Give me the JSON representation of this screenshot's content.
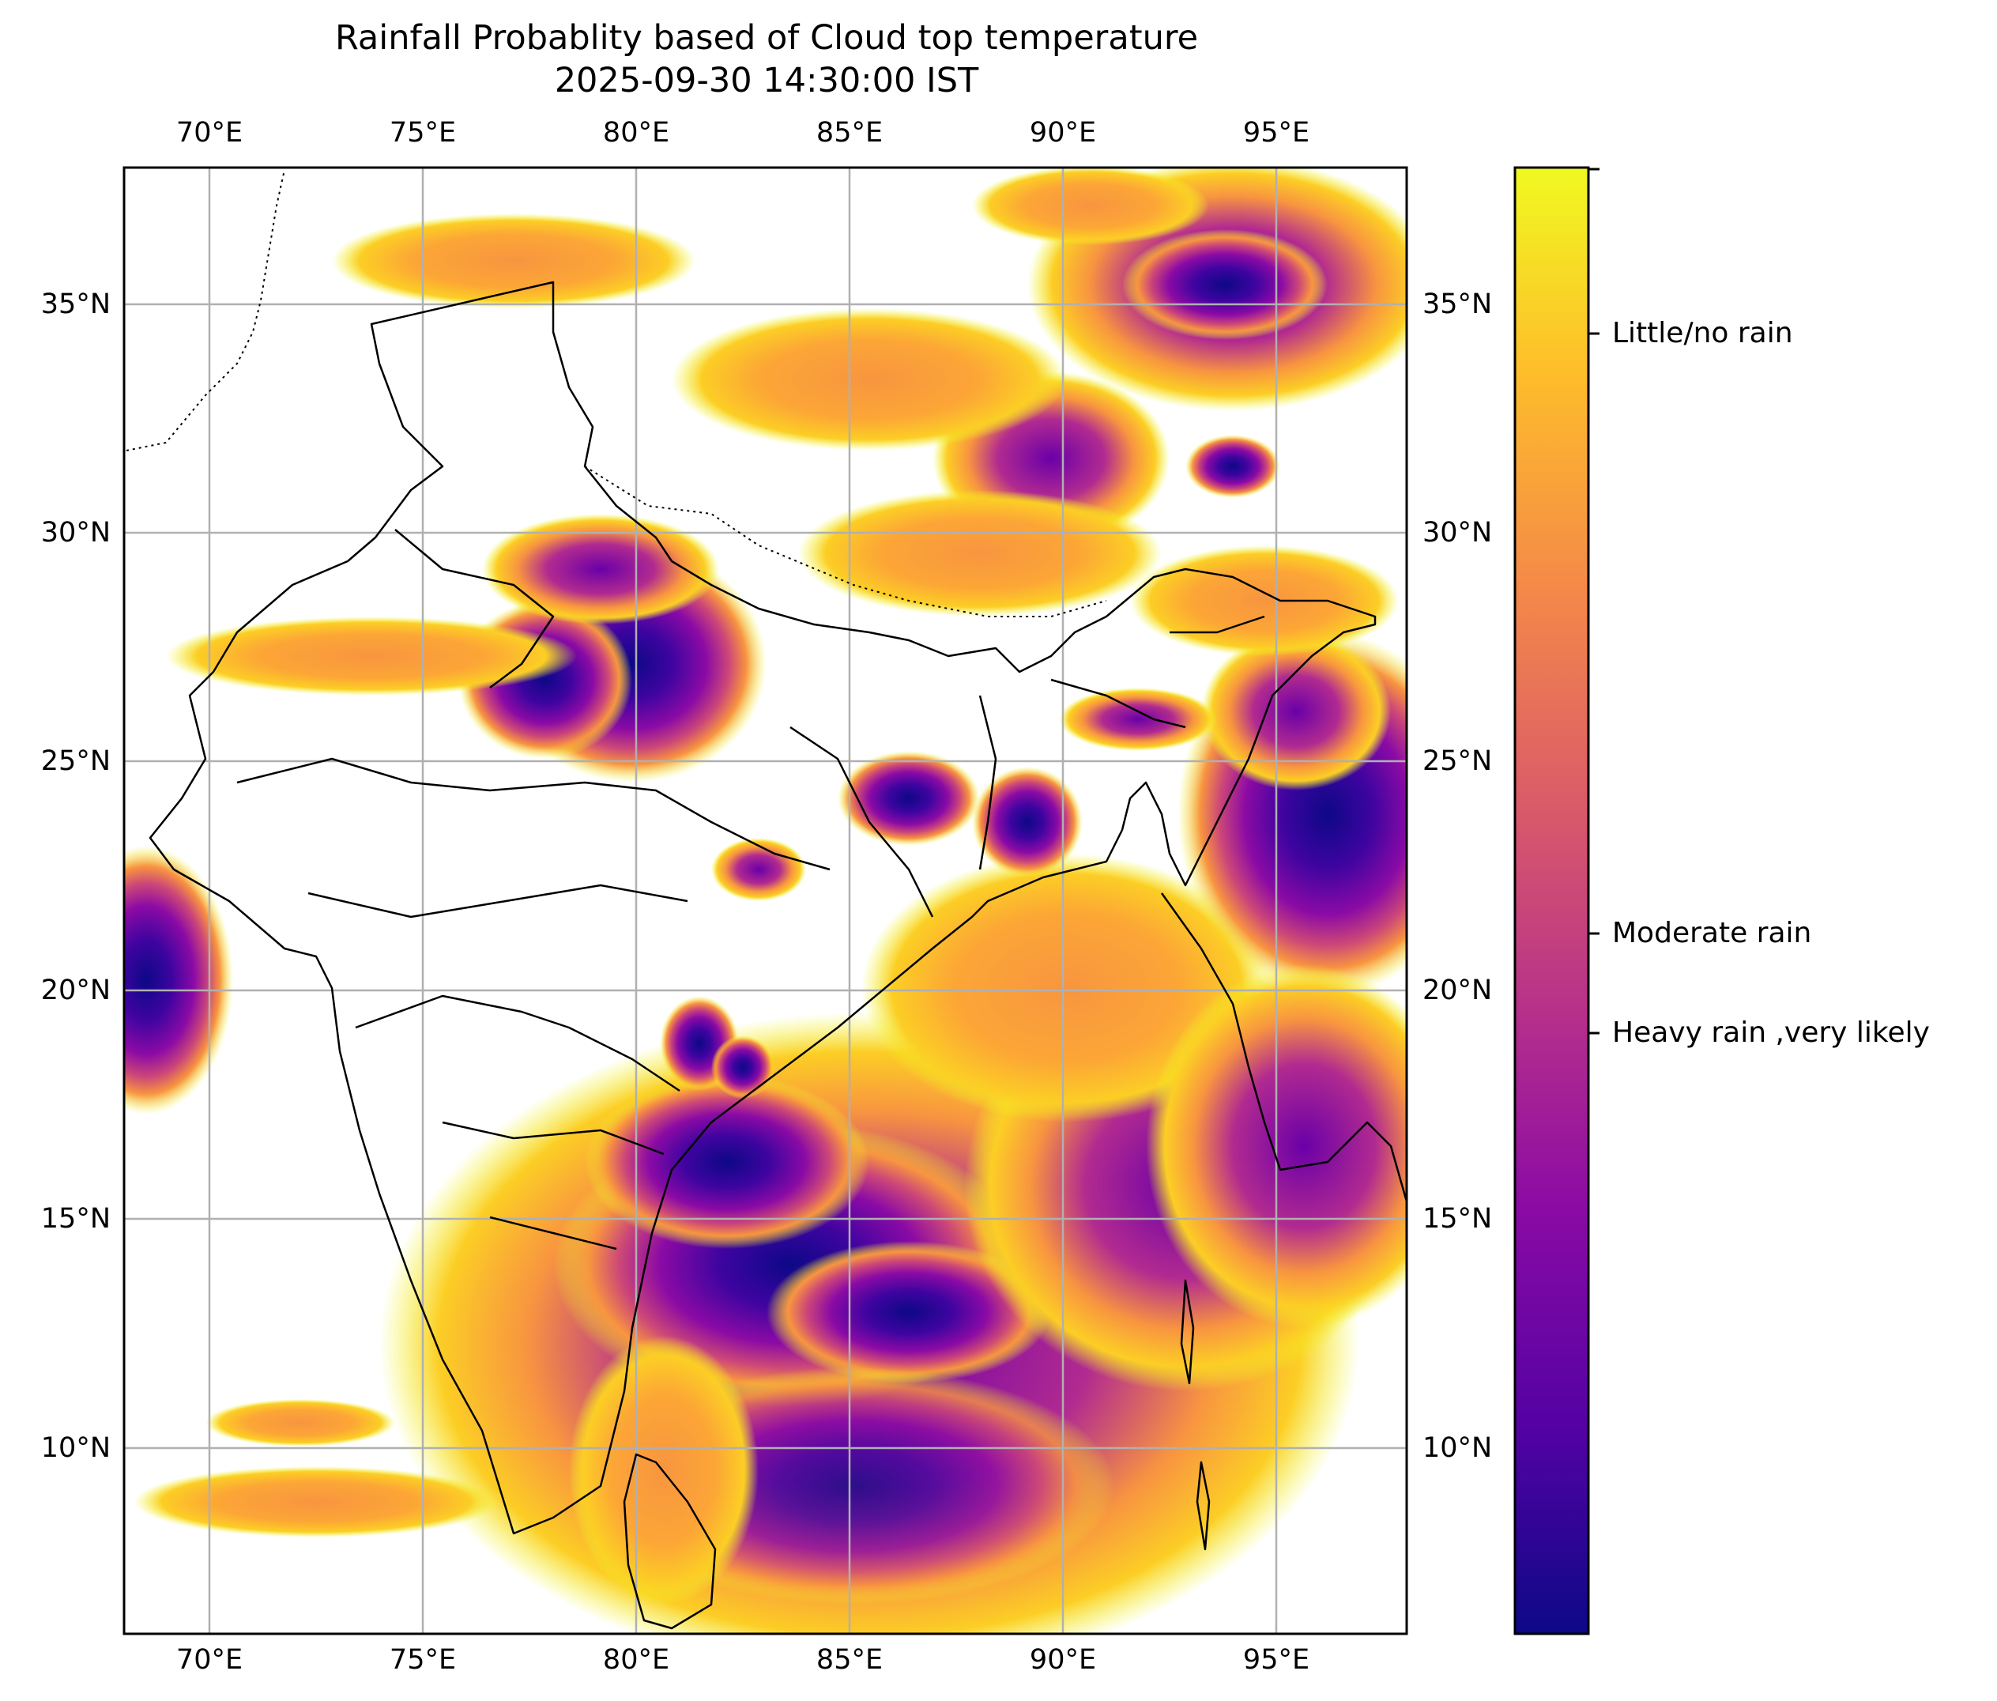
{
  "title": {
    "line1": "Rainfall Probablity based of Cloud top temperature",
    "line2": "2025-09-30 14:30:00 IST"
  },
  "map": {
    "lon_ticks": [
      "70°E",
      "75°E",
      "80°E",
      "85°E",
      "90°E",
      "95°E"
    ],
    "lat_ticks": [
      "35°N",
      "30°N",
      "25°N",
      "20°N",
      "15°N",
      "10°N"
    ],
    "lon_range": [
      68,
      98
    ],
    "lat_range": [
      6,
      38
    ],
    "gridlines": true,
    "colormap": "plasma",
    "colormap_stops": [
      "#0d0887",
      "#5302a3",
      "#8b0aa5",
      "#b83289",
      "#db5c68",
      "#f48849",
      "#febd2a",
      "#f0f921"
    ]
  },
  "colorbar": {
    "labels": [
      "Little/no rain",
      "Moderate rain",
      "Heavy rain ,very likely"
    ]
  },
  "chart_data": {
    "type": "heatmap",
    "title": "Rainfall Probablity based of Cloud top temperature",
    "subtitle": "2025-09-30 14:30:00 IST",
    "xlabel": "",
    "ylabel": "",
    "x_ticks": [
      "70°E",
      "75°E",
      "80°E",
      "85°E",
      "90°E",
      "95°E"
    ],
    "y_ticks": [
      "35°N",
      "30°N",
      "25°N",
      "20°N",
      "15°N",
      "10°N"
    ],
    "xlim": [
      68,
      98
    ],
    "ylim": [
      6,
      38
    ],
    "grid": true,
    "colorbar_labels": [
      "Little/no rain",
      "Moderate rain",
      "Heavy rain ,very likely"
    ],
    "intense_regions_approx": [
      {
        "lon": 79.5,
        "lat": 26.8,
        "level": "heavy"
      },
      {
        "lon": 83.5,
        "lat": 15.5,
        "level": "heavy"
      },
      {
        "lon": 85.5,
        "lat": 13.5,
        "level": "heavy"
      },
      {
        "lon": 96.5,
        "lat": 23.8,
        "level": "heavy"
      },
      {
        "lon": 94.0,
        "lat": 35.8,
        "level": "heavy"
      },
      {
        "lon": 69.0,
        "lat": 20.5,
        "level": "heavy"
      },
      {
        "lon": 81.3,
        "lat": 18.8,
        "level": "heavy"
      },
      {
        "lon": 86.0,
        "lat": 24.0,
        "level": "moderate"
      },
      {
        "lon": 88.8,
        "lat": 23.5,
        "level": "moderate"
      }
    ]
  }
}
